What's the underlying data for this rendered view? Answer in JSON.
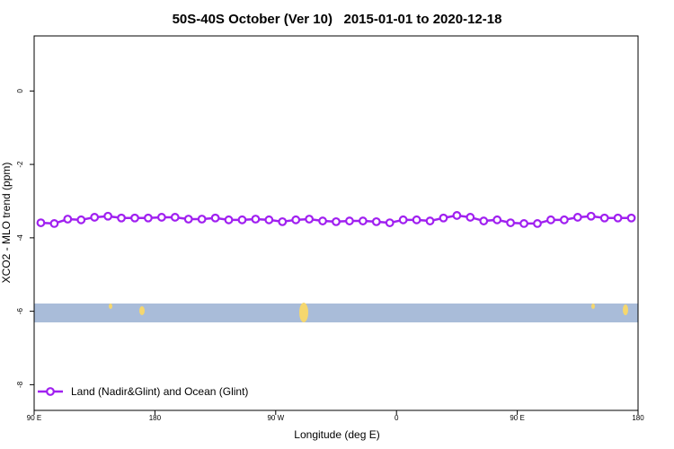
{
  "chart_data": {
    "type": "line",
    "title": "50S-40S October (Ver 10)   2015-01-01 to 2020-12-18",
    "x_label": "Longitude (deg E)",
    "y_label": "XCO2 - MLO trend (ppm)",
    "xlim": [
      90,
      540
    ],
    "xticks": [
      {
        "value": 90,
        "label": "90 E"
      },
      180,
      {
        "value": 270,
        "label": "90 W"
      },
      {
        "value": 360,
        "label": "0"
      },
      {
        "value": 450,
        "label": "90 E"
      },
      {
        "value": 540,
        "label": "180"
      }
    ],
    "ylim": [
      -8.7,
      1.5
    ],
    "yticks": [
      0,
      -2,
      -4,
      -6,
      -8
    ],
    "legend": "bottom-left",
    "x": [
      95,
      105,
      115,
      125,
      135,
      145,
      155,
      165,
      175,
      185,
      195,
      205,
      215,
      225,
      235,
      245,
      255,
      265,
      275,
      285,
      295,
      305,
      315,
      325,
      335,
      345,
      355,
      365,
      375,
      385,
      395,
      405,
      415,
      425,
      435,
      445,
      455,
      465,
      475,
      485,
      495,
      505,
      515,
      525,
      535
    ],
    "series": [
      {
        "name": "Land (Nadir&Glint) and Ocean (Glint)",
        "color": "#a020f0",
        "values": [
          -3.59,
          -3.61,
          -3.49,
          -3.51,
          -3.44,
          -3.41,
          -3.46,
          -3.46,
          -3.46,
          -3.44,
          -3.44,
          -3.49,
          -3.49,
          -3.46,
          -3.51,
          -3.51,
          -3.49,
          -3.51,
          -3.56,
          -3.51,
          -3.49,
          -3.54,
          -3.56,
          -3.54,
          -3.54,
          -3.56,
          -3.59,
          -3.51,
          -3.51,
          -3.54,
          -3.46,
          -3.39,
          -3.44,
          -3.54,
          -3.51,
          -3.59,
          -3.61,
          -3.61,
          -3.51,
          -3.51,
          -3.44,
          -3.41,
          -3.46,
          -3.46,
          -3.46
        ]
      }
    ]
  }
}
